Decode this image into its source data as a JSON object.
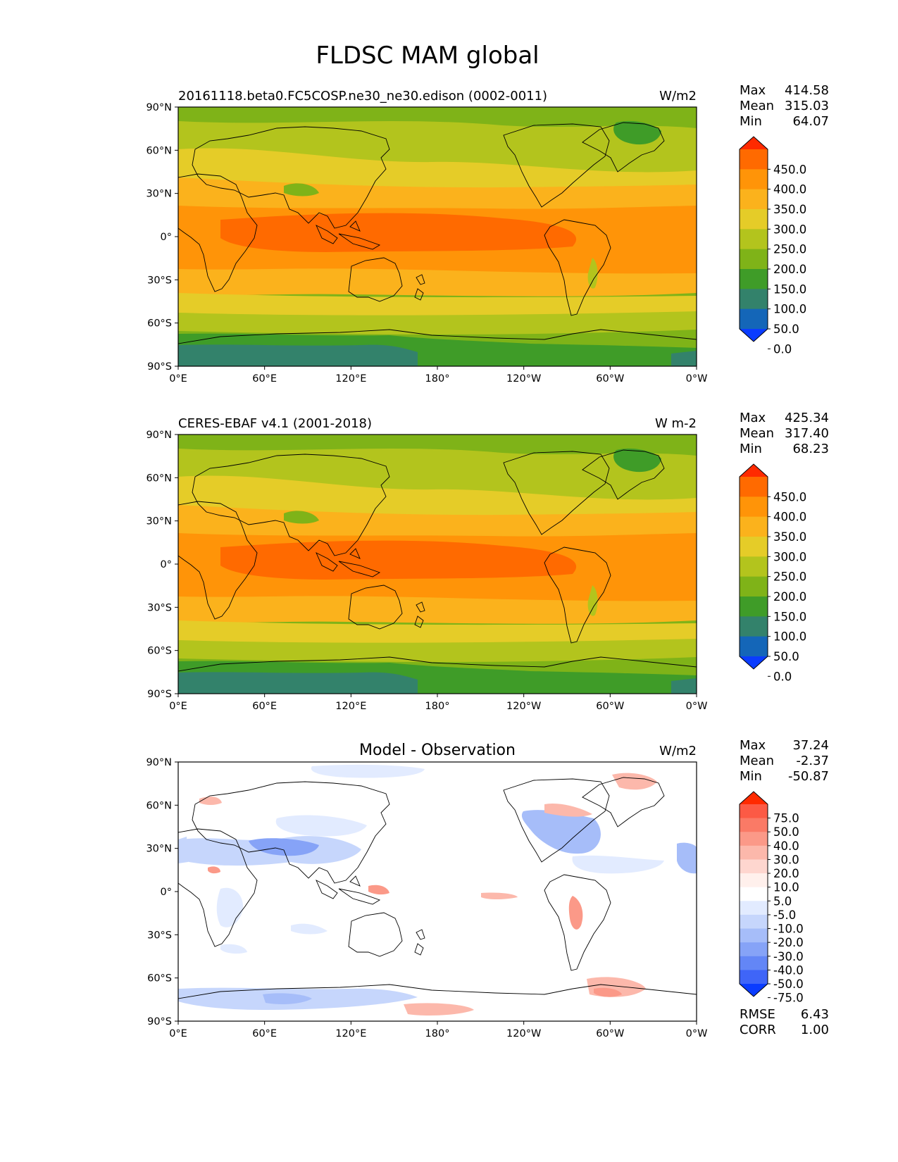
{
  "title": "FLDSC MAM global",
  "lat_ticks": [
    "90°N",
    "60°N",
    "30°N",
    "0°",
    "30°S",
    "60°S",
    "90°S"
  ],
  "lon_ticks": [
    "0°E",
    "60°E",
    "120°E",
    "180°",
    "120°W",
    "60°W",
    "0°W"
  ],
  "panels": [
    {
      "left_title": "20161118.beta0.FC5COSP.ne30_ne30.edison (0002-0011)",
      "center_title": "",
      "units": "W/m2",
      "stats": [
        {
          "label": "Max",
          "value": "414.58"
        },
        {
          "label": "Mean",
          "value": "315.03"
        },
        {
          "label": "Min",
          "value": "64.07"
        }
      ],
      "colorbar": {
        "labels": [
          "450.0",
          "400.0",
          "350.0",
          "300.0",
          "250.0",
          "200.0",
          "150.0",
          "100.0",
          "50.0",
          "0.0"
        ],
        "colors": [
          "#ff2a00",
          "#ff6a00",
          "#ff9408",
          "#fbb21c",
          "#e5cc28",
          "#b3c41d",
          "#7fb318",
          "#3f9c28",
          "#33826b",
          "#1466b8",
          "#0a3cff"
        ]
      }
    },
    {
      "left_title": "CERES-EBAF v4.1 (2001-2018)",
      "center_title": "",
      "units": "W m-2",
      "stats": [
        {
          "label": "Max",
          "value": "425.34"
        },
        {
          "label": "Mean",
          "value": "317.40"
        },
        {
          "label": "Min",
          "value": "68.23"
        }
      ],
      "colorbar": {
        "labels": [
          "450.0",
          "400.0",
          "350.0",
          "300.0",
          "250.0",
          "200.0",
          "150.0",
          "100.0",
          "50.0",
          "0.0"
        ],
        "colors": [
          "#ff2a00",
          "#ff6a00",
          "#ff9408",
          "#fbb21c",
          "#e5cc28",
          "#b3c41d",
          "#7fb318",
          "#3f9c28",
          "#33826b",
          "#1466b8",
          "#0a3cff"
        ]
      }
    },
    {
      "left_title": "",
      "center_title": "Model - Observation",
      "units": "W/m2",
      "stats": [
        {
          "label": "Max",
          "value": "37.24"
        },
        {
          "label": "Mean",
          "value": "-2.37"
        },
        {
          "label": "Min",
          "value": "-50.87"
        }
      ],
      "extra_stats": [
        {
          "label": "RMSE",
          "value": "6.43"
        },
        {
          "label": "CORR",
          "value": "1.00"
        }
      ],
      "colorbar": {
        "labels": [
          "75.0",
          "50.0",
          "40.0",
          "30.0",
          "20.0",
          "10.0",
          "5.0",
          "-5.0",
          "-10.0",
          "-20.0",
          "-30.0",
          "-40.0",
          "-50.0",
          "-75.0"
        ],
        "colors": [
          "#ff2a00",
          "#fc5a45",
          "#fa7a66",
          "#fb9988",
          "#fcb8ab",
          "#fed6cf",
          "#fff0ec",
          "#ffffff",
          "#e2ebff",
          "#c6d6fc",
          "#a6bdf9",
          "#86a3f7",
          "#6386f6",
          "#3f65f8",
          "#0a3cff"
        ]
      }
    }
  ]
}
